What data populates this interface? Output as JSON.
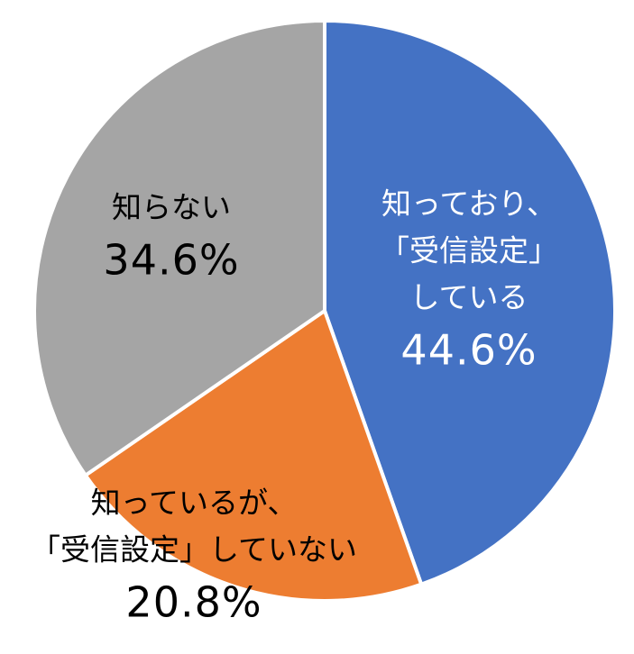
{
  "chart_data": {
    "type": "pie",
    "categories": [
      [
        "知っており、",
        "「受信設定」",
        "している"
      ],
      [
        "知っているが、",
        "「受信設定」していない"
      ],
      [
        "知らない"
      ]
    ],
    "values": [
      44.6,
      20.8,
      34.6
    ],
    "value_labels": [
      "44.6%",
      "20.8%",
      "34.6%"
    ],
    "colors": [
      "#4472c4",
      "#ed7d31",
      "#a5a5a5"
    ]
  }
}
